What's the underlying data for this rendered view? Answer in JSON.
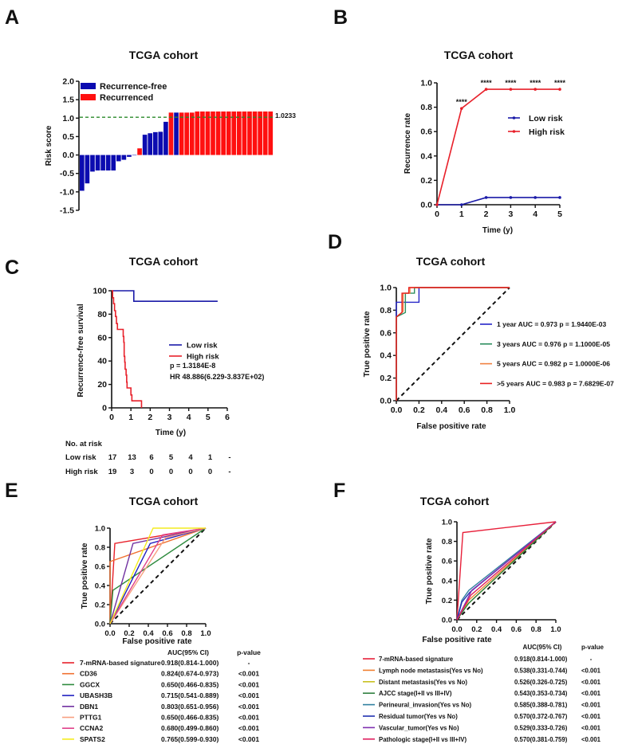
{
  "chart_data": [
    {
      "panel": "A",
      "type": "bar",
      "title": "TCGA cohort",
      "ylabel": "Risk score",
      "ylim": [
        -1.5,
        2.0
      ],
      "yticks": [
        -1.5,
        -1.0,
        -0.5,
        0.0,
        0.5,
        1.0,
        1.5,
        2.0
      ],
      "yticklabels": [
        "-1.5",
        "-1.0",
        "-0.5",
        "0.0",
        "0.5",
        "1.0",
        "1.5",
        "2.0"
      ],
      "legend": [
        {
          "name": "Recurrence-free",
          "color": "#0b0bb0"
        },
        {
          "name": "Recurrenced",
          "color": "#ff1010"
        }
      ],
      "legend_position": "top-left",
      "values": [
        -0.97,
        -0.77,
        -0.45,
        -0.42,
        -0.42,
        -0.42,
        -0.42,
        -0.17,
        -0.13,
        -0.05,
        0.0,
        0.18,
        0.55,
        0.59,
        0.62,
        0.63,
        0.9,
        1.15,
        1.15,
        1.15,
        1.15,
        1.15,
        1.18,
        1.18,
        1.18,
        1.18,
        1.18,
        1.18,
        1.18,
        1.18,
        1.18,
        1.18,
        1.18,
        1.18,
        1.18,
        1.18,
        1.18
      ],
      "groups": [
        0,
        0,
        0,
        0,
        0,
        0,
        0,
        0,
        0,
        0,
        0,
        1,
        0,
        0,
        0,
        0,
        0,
        1,
        0,
        1,
        1,
        1,
        1,
        1,
        1,
        1,
        1,
        1,
        1,
        1,
        1,
        1,
        1,
        1,
        1,
        1,
        1
      ],
      "threshold": {
        "value": 1.0233,
        "label": "1.0233",
        "color": "#2a8a2a"
      }
    },
    {
      "panel": "B",
      "type": "line",
      "title": "TCGA cohort",
      "xlabel": "Time (y)",
      "ylabel": "Recurrence rate",
      "xlim": [
        0,
        5
      ],
      "ylim": [
        0,
        1.0
      ],
      "xticks": [
        0,
        1,
        2,
        3,
        4,
        5
      ],
      "xticklabels": [
        "0",
        "1",
        "2",
        "3",
        "4",
        "5"
      ],
      "yticks": [
        0,
        0.2,
        0.4,
        0.6,
        0.8,
        1.0
      ],
      "yticklabels": [
        "0.0",
        "0.2",
        "0.4",
        "0.6",
        "0.8",
        "1.0"
      ],
      "x": [
        0,
        1,
        2,
        3,
        4,
        5
      ],
      "series": [
        {
          "name": "Low risk",
          "color": "#1a1aa8",
          "values": [
            0,
            0,
            0.059,
            0.059,
            0.059,
            0.059
          ]
        },
        {
          "name": "High risk",
          "color": "#e8202a",
          "values": [
            0,
            0.79,
            0.947,
            0.947,
            0.947,
            0.947
          ]
        }
      ],
      "legend_position": "right",
      "annotations": [
        {
          "x": 1,
          "text": "****"
        },
        {
          "x": 2,
          "text": "****"
        },
        {
          "x": 3,
          "text": "****"
        },
        {
          "x": 4,
          "text": "****"
        },
        {
          "x": 5,
          "text": "****"
        }
      ]
    },
    {
      "panel": "C",
      "type": "line",
      "title": "TCGA cohort",
      "xlabel": "Time (y)",
      "ylabel": "Recurrence-free survival",
      "xlim": [
        0,
        6
      ],
      "ylim": [
        0,
        100
      ],
      "xticks": [
        0,
        1,
        2,
        3,
        4,
        5,
        6
      ],
      "xticklabels": [
        "0",
        "1",
        "2",
        "3",
        "4",
        "5",
        "6"
      ],
      "yticks": [
        0,
        20,
        40,
        60,
        80,
        100
      ],
      "yticklabels": [
        "0",
        "20",
        "40",
        "60",
        "80",
        "100"
      ],
      "series": [
        {
          "name": "Low risk",
          "color": "#1a1aa8",
          "steps": [
            [
              0,
              100
            ],
            [
              1.15,
              91
            ]
          ],
          "end": 5.5
        },
        {
          "name": "High risk",
          "color": "#e8202a",
          "steps": [
            [
              0,
              100
            ],
            [
              0.05,
              94
            ],
            [
              0.1,
              89
            ],
            [
              0.15,
              83
            ],
            [
              0.2,
              78
            ],
            [
              0.25,
              72
            ],
            [
              0.3,
              67
            ],
            [
              0.6,
              61
            ],
            [
              0.63,
              56
            ],
            [
              0.65,
              44
            ],
            [
              0.68,
              39
            ],
            [
              0.7,
              33
            ],
            [
              0.75,
              28
            ],
            [
              0.78,
              22
            ],
            [
              0.8,
              17
            ],
            [
              1.0,
              11
            ],
            [
              1.05,
              6
            ],
            [
              1.55,
              0
            ]
          ],
          "end": 1.55
        }
      ],
      "stats": [
        "p = 1.3184E-8",
        "HR 48.886(6.229-3.837E+02)"
      ],
      "risk_table": {
        "title": "No. at risk",
        "rows": [
          {
            "label": "Low risk",
            "values": [
              "17",
              "13",
              "6",
              "5",
              "4",
              "1",
              "-"
            ]
          },
          {
            "label": "High risk",
            "values": [
              "19",
              "3",
              "0",
              "0",
              "0",
              "0",
              "-"
            ]
          }
        ]
      }
    },
    {
      "panel": "D",
      "type": "line",
      "title": "TCGA cohort",
      "xlabel": "False positive rate",
      "ylabel": "True positive rate",
      "xlim": [
        0,
        1
      ],
      "ylim": [
        0,
        1
      ],
      "xticks": [
        0,
        0.2,
        0.4,
        0.6,
        0.8,
        1.0
      ],
      "xticklabels": [
        "0.0",
        "0.2",
        "0.4",
        "0.6",
        "0.8",
        "1.0"
      ],
      "yticks": [
        0,
        0.2,
        0.4,
        0.6,
        0.8,
        1.0
      ],
      "yticklabels": [
        "0.0",
        "0.2",
        "0.4",
        "0.6",
        "0.8",
        "1.0"
      ],
      "series": [
        {
          "name": "1 year   AUC = 0.973  p = 1.9440E-03",
          "color": "#2525c8",
          "points": [
            [
              0,
              0
            ],
            [
              0,
              0.87
            ],
            [
              0.2,
              0.87
            ],
            [
              0.2,
              1
            ],
            [
              1,
              1
            ]
          ]
        },
        {
          "name": "3 years AUC = 0.976  p = 1.1000E-05",
          "color": "#2e9060",
          "points": [
            [
              0,
              0
            ],
            [
              0,
              0.74
            ],
            [
              0.08,
              0.78
            ],
            [
              0.08,
              0.95
            ],
            [
              0.16,
              0.95
            ],
            [
              0.16,
              1
            ],
            [
              1,
              1
            ]
          ]
        },
        {
          "name": "5 years AUC = 0.982  p = 1.0000E-06",
          "color": "#f08040",
          "points": [
            [
              0,
              0
            ],
            [
              0,
              0.74
            ],
            [
              0.06,
              0.79
            ],
            [
              0.06,
              0.95
            ],
            [
              0.12,
              0.95
            ],
            [
              0.12,
              1
            ],
            [
              1,
              1
            ]
          ]
        },
        {
          "name": ">5 years AUC = 0.983  p = 7.6829E-07",
          "color": "#e82020",
          "points": [
            [
              0,
              0
            ],
            [
              0,
              0.74
            ],
            [
              0.05,
              0.78
            ],
            [
              0.05,
              0.95
            ],
            [
              0.11,
              0.95
            ],
            [
              0.11,
              1
            ],
            [
              1,
              1
            ]
          ]
        }
      ],
      "legend_position": "right"
    },
    {
      "panel": "E",
      "type": "line",
      "title": "TCGA cohort",
      "xlabel": "False positive rate",
      "ylabel": "True positive rate",
      "xlim": [
        0,
        1
      ],
      "ylim": [
        0,
        1
      ],
      "xticks": [
        0,
        0.2,
        0.4,
        0.6,
        0.8,
        1.0
      ],
      "xticklabels": [
        "0.0",
        "0.2",
        "0.4",
        "0.6",
        "0.8",
        "1.0"
      ],
      "yticks": [
        0,
        0.2,
        0.4,
        0.6,
        0.8,
        1.0
      ],
      "yticklabels": [
        "0.0",
        "0.2",
        "0.4",
        "0.6",
        "0.8",
        "1.0"
      ],
      "table_headers": [
        "AUC(95% CI)",
        "p-value"
      ],
      "series": [
        {
          "name": "7-mRNA-based signature",
          "auc": "0.918(0.814-1.000)",
          "p": "-",
          "color": "#e8202a",
          "points": [
            [
              0,
              0
            ],
            [
              0.05,
              0.84
            ],
            [
              1,
              1
            ]
          ]
        },
        {
          "name": "CD36",
          "auc": "0.824(0.674-0.973)",
          "p": "<0.001",
          "color": "#f07030",
          "points": [
            [
              0,
              0
            ],
            [
              0,
              0.65
            ],
            [
              1,
              1
            ]
          ]
        },
        {
          "name": "GGCX",
          "auc": "0.650(0.466-0.835)",
          "p": "<0.001",
          "color": "#2e8b3e",
          "points": [
            [
              0,
              0
            ],
            [
              0.03,
              0.35
            ],
            [
              1,
              1
            ]
          ]
        },
        {
          "name": "UBASH3B",
          "auc": "0.715(0.541-0.889)",
          "p": "<0.001",
          "color": "#2020c0",
          "points": [
            [
              0,
              0
            ],
            [
              0.42,
              0.84
            ],
            [
              1,
              1
            ]
          ]
        },
        {
          "name": "DBN1",
          "auc": "0.803(0.651-0.956)",
          "p": "<0.001",
          "color": "#7030a0",
          "points": [
            [
              0,
              0
            ],
            [
              0.24,
              0.84
            ],
            [
              1,
              1
            ]
          ]
        },
        {
          "name": "PTTG1",
          "auc": "0.650(0.466-0.835)",
          "p": "<0.001",
          "color": "#f8a080",
          "points": [
            [
              0,
              0
            ],
            [
              0.58,
              0.9
            ],
            [
              1,
              1
            ]
          ]
        },
        {
          "name": "CCNA2",
          "auc": "0.680(0.499-0.860)",
          "p": "<0.001",
          "color": "#e0408a",
          "points": [
            [
              0,
              0
            ],
            [
              0.55,
              0.93
            ],
            [
              1,
              1
            ]
          ]
        },
        {
          "name": "SPATS2",
          "auc": "0.765(0.599-0.930)",
          "p": "<0.001",
          "color": "#f4ec20",
          "points": [
            [
              0,
              0
            ],
            [
              0.45,
              1.0
            ],
            [
              1,
              1
            ]
          ]
        }
      ]
    },
    {
      "panel": "F",
      "type": "line",
      "title": "TCGA cohort",
      "xlabel": "False positive rate",
      "ylabel": "True positive rate",
      "xlim": [
        0,
        1
      ],
      "ylim": [
        0,
        1
      ],
      "xticks": [
        0,
        0.2,
        0.4,
        0.6,
        0.8,
        1.0
      ],
      "xticklabels": [
        "0.0",
        "0.2",
        "0.4",
        "0.6",
        "0.8",
        "1.0"
      ],
      "yticks": [
        0,
        0.2,
        0.4,
        0.6,
        0.8,
        1.0
      ],
      "yticklabels": [
        "0.0",
        "0.2",
        "0.4",
        "0.6",
        "0.8",
        "1.0"
      ],
      "table_headers": [
        "AUC(95% CI)",
        "p-value"
      ],
      "series": [
        {
          "name": "7-mRNA-based signature",
          "auc": "0.918(0.814-1.000)",
          "p": "-",
          "color": "#e8203a",
          "points": [
            [
              0,
              0
            ],
            [
              0.06,
              0.89
            ],
            [
              1,
              1
            ]
          ]
        },
        {
          "name": "Lymph node metastasis(Yes vs No)",
          "auc": "0.538(0.331-0.744)",
          "p": "<0.001",
          "color": "#f08030",
          "points": [
            [
              0,
              0
            ],
            [
              0.12,
              0.2
            ],
            [
              1,
              1
            ]
          ]
        },
        {
          "name": "Distant metastasis(Yes vs No)",
          "auc": "0.526(0.326-0.725)",
          "p": "<0.001",
          "color": "#c8c020",
          "points": [
            [
              0,
              0
            ],
            [
              0.1,
              0.15
            ],
            [
              1,
              1
            ]
          ]
        },
        {
          "name": "AJCC stage(I+II vs III+IV)",
          "auc": "0.543(0.353-0.734)",
          "p": "<0.001",
          "color": "#308040",
          "points": [
            [
              0,
              0
            ],
            [
              0.12,
              0.17
            ],
            [
              1,
              1
            ]
          ]
        },
        {
          "name": "Perineural_invasion(Yes vs No)",
          "auc": "0.585(0.388-0.781)",
          "p": "<0.001",
          "color": "#3080a0",
          "points": [
            [
              0,
              0
            ],
            [
              0.05,
              0.2
            ],
            [
              0.12,
              0.3
            ],
            [
              1,
              1
            ]
          ]
        },
        {
          "name": "Residual tumor(Yes vs No)",
          "auc": "0.570(0.372-0.767)",
          "p": "<0.001",
          "color": "#2030b0",
          "points": [
            [
              0,
              0
            ],
            [
              0.05,
              0.18
            ],
            [
              0.13,
              0.28
            ],
            [
              1,
              1
            ]
          ]
        },
        {
          "name": "Vascular_tumor(Yes vs No)",
          "auc": "0.529(0.333-0.726)",
          "p": "<0.001",
          "color": "#8030b0",
          "points": [
            [
              0,
              0
            ],
            [
              0.15,
              0.3
            ],
            [
              1,
              1
            ]
          ]
        },
        {
          "name": "Pathologic stage(I+II vs III+IV)",
          "auc": "0.570(0.381-0.759)",
          "p": "<0.001",
          "color": "#e02060",
          "points": [
            [
              0,
              0
            ],
            [
              0.14,
              0.25
            ],
            [
              1,
              1
            ]
          ]
        }
      ]
    }
  ]
}
